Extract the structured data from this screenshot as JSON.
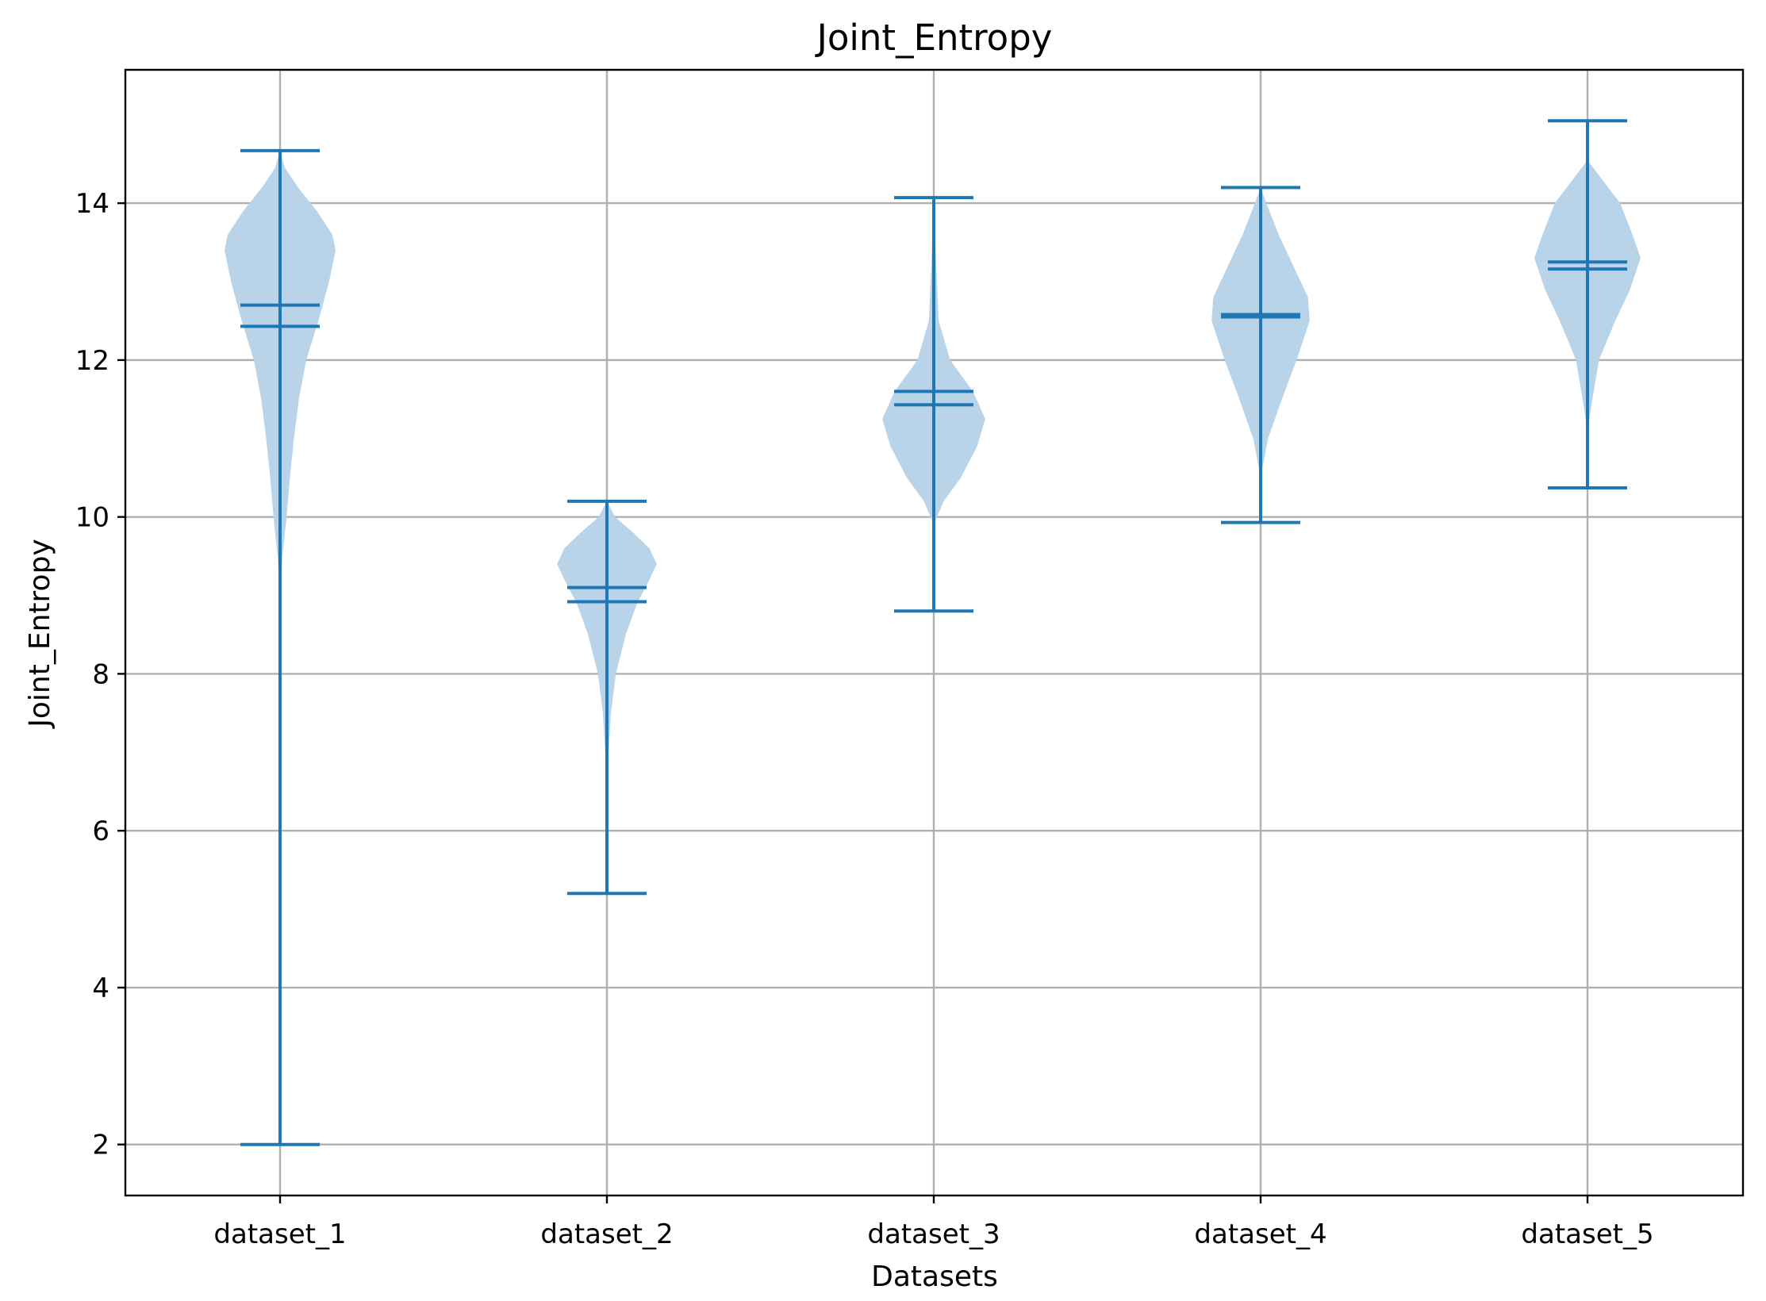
{
  "chart_data": {
    "type": "violin",
    "title": "Joint_Entropy",
    "xlabel": "Datasets",
    "ylabel": "Joint_Entropy",
    "categories": [
      "dataset_1",
      "dataset_2",
      "dataset_3",
      "dataset_4",
      "dataset_5"
    ],
    "ylim": [
      1.35,
      15.7
    ],
    "yticks": [
      2,
      4,
      6,
      8,
      10,
      12,
      14
    ],
    "grid": true,
    "colors": {
      "body": "#b9d4e8",
      "lines": "#1f77b4"
    },
    "series": [
      {
        "category": "dataset_1",
        "min": 2.0,
        "max": 14.67,
        "mean": 12.7,
        "median": 12.43,
        "density": [
          [
            9.0,
            0.0
          ],
          [
            9.5,
            0.03
          ],
          [
            10.0,
            0.08
          ],
          [
            10.5,
            0.12
          ],
          [
            11.0,
            0.17
          ],
          [
            11.5,
            0.23
          ],
          [
            12.0,
            0.32
          ],
          [
            12.5,
            0.47
          ],
          [
            13.0,
            0.6
          ],
          [
            13.4,
            0.68
          ],
          [
            13.6,
            0.64
          ],
          [
            13.9,
            0.45
          ],
          [
            14.2,
            0.22
          ],
          [
            14.45,
            0.06
          ],
          [
            14.67,
            0.0
          ]
        ]
      },
      {
        "category": "dataset_2",
        "min": 5.2,
        "max": 10.2,
        "mean": 9.1,
        "median": 8.92,
        "density": [
          [
            6.5,
            0.0
          ],
          [
            7.0,
            0.02
          ],
          [
            7.5,
            0.05
          ],
          [
            8.0,
            0.11
          ],
          [
            8.5,
            0.23
          ],
          [
            8.9,
            0.37
          ],
          [
            9.2,
            0.52
          ],
          [
            9.4,
            0.61
          ],
          [
            9.6,
            0.52
          ],
          [
            9.8,
            0.32
          ],
          [
            10.0,
            0.1
          ],
          [
            10.2,
            0.0
          ]
        ]
      },
      {
        "category": "dataset_3",
        "min": 8.8,
        "max": 14.07,
        "mean": 11.6,
        "median": 11.43,
        "density": [
          [
            9.9,
            0.0
          ],
          [
            10.2,
            0.12
          ],
          [
            10.5,
            0.33
          ],
          [
            10.9,
            0.53
          ],
          [
            11.25,
            0.63
          ],
          [
            11.6,
            0.48
          ],
          [
            12.0,
            0.2
          ],
          [
            12.5,
            0.06
          ],
          [
            13.2,
            0.03
          ],
          [
            13.8,
            0.01
          ],
          [
            14.07,
            0.0
          ]
        ]
      },
      {
        "category": "dataset_4",
        "min": 9.93,
        "max": 14.2,
        "mean": 12.58,
        "median": 12.55,
        "density": [
          [
            10.5,
            0.0
          ],
          [
            11.0,
            0.09
          ],
          [
            11.5,
            0.26
          ],
          [
            12.0,
            0.44
          ],
          [
            12.5,
            0.6
          ],
          [
            12.8,
            0.58
          ],
          [
            13.2,
            0.4
          ],
          [
            13.6,
            0.22
          ],
          [
            14.0,
            0.07
          ],
          [
            14.2,
            0.0
          ]
        ]
      },
      {
        "category": "dataset_5",
        "min": 10.37,
        "max": 15.05,
        "mean": 13.25,
        "median": 13.16,
        "density": [
          [
            11.1,
            0.0
          ],
          [
            11.5,
            0.06
          ],
          [
            12.0,
            0.14
          ],
          [
            12.5,
            0.34
          ],
          [
            12.9,
            0.52
          ],
          [
            13.3,
            0.65
          ],
          [
            13.6,
            0.55
          ],
          [
            14.0,
            0.4
          ],
          [
            14.3,
            0.18
          ],
          [
            14.55,
            0.0
          ]
        ]
      }
    ]
  }
}
